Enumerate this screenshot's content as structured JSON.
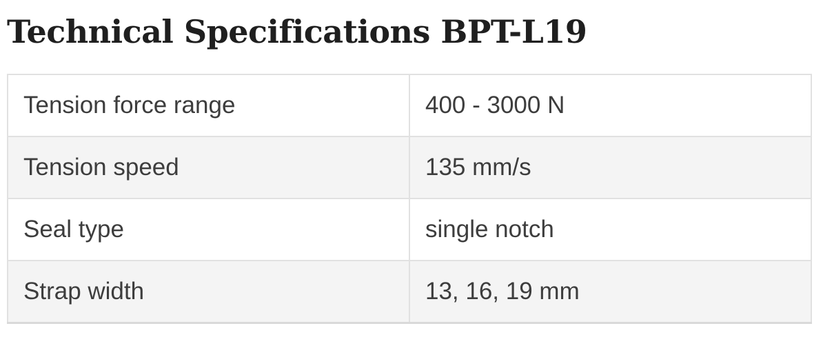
{
  "page": {
    "title": "Technical Specifications BPT-L19"
  },
  "spec_table": {
    "rows": [
      {
        "label": "Tension force range",
        "value": "400 - 3000 N"
      },
      {
        "label": "Tension speed",
        "value": "135 mm/s"
      },
      {
        "label": "Seal type",
        "value": "single notch"
      },
      {
        "label": "Strap width",
        "value": "13, 16, 19 mm"
      }
    ]
  },
  "colors": {
    "title_text": "#1f1f1f",
    "cell_text": "#3d3d3d",
    "row_alt_background": "#f4f4f4",
    "border": "#e1e1e1",
    "table_bottom_border": "#d9d9d9",
    "page_background": "#ffffff"
  }
}
